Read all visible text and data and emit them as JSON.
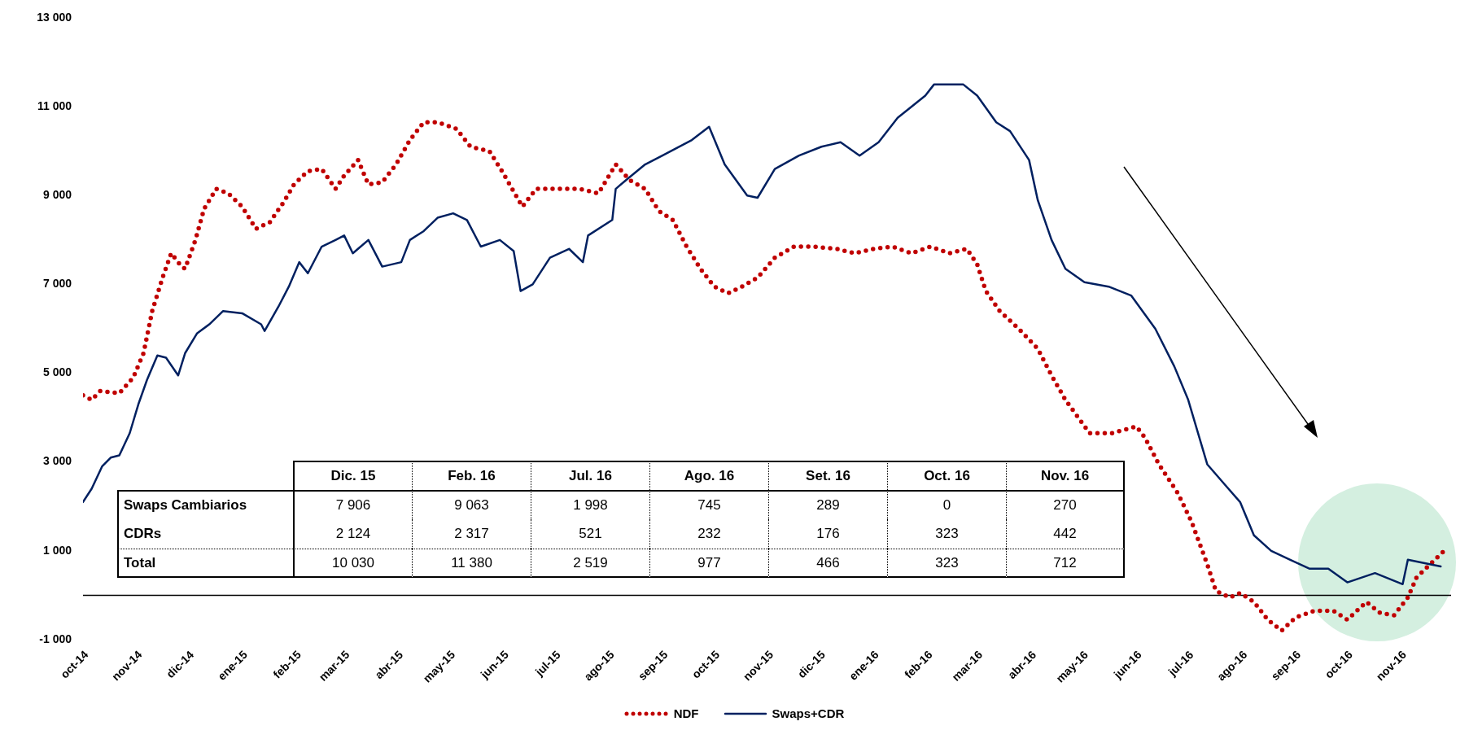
{
  "chart_data": {
    "type": "line",
    "legend": "bottom",
    "marker": "none",
    "xlim": [
      "2014-10-01",
      "2016-11-30"
    ],
    "xticks": [
      {
        "value": "2014-10-01",
        "label": "oct-14"
      },
      {
        "value": "2014-11-01",
        "label": "nov-14"
      },
      {
        "value": "2014-12-01",
        "label": "dic-14"
      },
      {
        "value": "2015-01-01",
        "label": "ene-15"
      },
      {
        "value": "2015-02-01",
        "label": "feb-15"
      },
      {
        "value": "2015-03-01",
        "label": "mar-15"
      },
      {
        "value": "2015-04-01",
        "label": "abr-15"
      },
      {
        "value": "2015-05-01",
        "label": "may-15"
      },
      {
        "value": "2015-06-01",
        "label": "jun-15"
      },
      {
        "value": "2015-07-01",
        "label": "jul-15"
      },
      {
        "value": "2015-08-01",
        "label": "ago-15"
      },
      {
        "value": "2015-09-01",
        "label": "sep-15"
      },
      {
        "value": "2015-10-01",
        "label": "oct-15"
      },
      {
        "value": "2015-11-01",
        "label": "nov-15"
      },
      {
        "value": "2015-12-01",
        "label": "dic-15"
      },
      {
        "value": "2016-01-01",
        "label": "ene-16"
      },
      {
        "value": "2016-02-01",
        "label": "feb-16"
      },
      {
        "value": "2016-03-01",
        "label": "mar-16"
      },
      {
        "value": "2016-04-01",
        "label": "abr-16"
      },
      {
        "value": "2016-05-01",
        "label": "may-16"
      },
      {
        "value": "2016-06-01",
        "label": "jun-16"
      },
      {
        "value": "2016-07-01",
        "label": "jul-16"
      },
      {
        "value": "2016-08-01",
        "label": "ago-16"
      },
      {
        "value": "2016-09-01",
        "label": "sep-16"
      },
      {
        "value": "2016-10-01",
        "label": "oct-16"
      },
      {
        "value": "2016-11-01",
        "label": "nov-16"
      }
    ],
    "ylim": [
      -1000,
      13000
    ],
    "yticks": [
      {
        "value": -1000,
        "label": "-1 000"
      },
      {
        "value": 1000,
        "label": "1 000"
      },
      {
        "value": 3000,
        "label": "3 000"
      },
      {
        "value": 5000,
        "label": "5 000"
      },
      {
        "value": 7000,
        "label": "7 000"
      },
      {
        "value": 9000,
        "label": "9 000"
      },
      {
        "value": 11000,
        "label": "11 000"
      },
      {
        "value": 13000,
        "label": "13 000"
      }
    ],
    "ref_lines": [
      {
        "axis": "y",
        "value": 0,
        "color": "#000000"
      }
    ],
    "annotations": [
      "Dic. 15",
      "Feb. 16",
      "Jul. 16",
      "Ago. 16",
      "Set. 16",
      "Oct. 16",
      "Nov. 16",
      "Swaps Cambiarios",
      "7 906",
      "9 063",
      "1 998",
      "745",
      "289",
      "0",
      "270",
      "CDRs",
      "2 124",
      "2 317",
      "521",
      "232",
      "176",
      "323",
      "442",
      "Total",
      "10 030",
      "11 380",
      "2 519",
      "977",
      "466",
      "323",
      "712"
    ],
    "series": [
      {
        "name": "NDF",
        "color": "#c00000",
        "line_style": "dotted",
        "x": [
          "2014-10-01",
          "2014-10-06",
          "2014-10-11",
          "2014-10-22",
          "2014-10-30",
          "2014-11-05",
          "2014-11-10",
          "2014-11-16",
          "2014-11-21",
          "2014-11-27",
          "2014-11-29",
          "2014-12-05",
          "2014-12-10",
          "2014-12-17",
          "2014-12-24",
          "2015-01-01",
          "2015-01-09",
          "2015-01-17",
          "2015-01-25",
          "2015-01-31",
          "2015-02-08",
          "2015-02-16",
          "2015-02-24",
          "2015-03-01",
          "2015-03-09",
          "2015-03-15",
          "2015-03-23",
          "2015-03-31",
          "2015-04-08",
          "2015-04-16",
          "2015-04-24",
          "2015-05-05",
          "2015-05-13",
          "2015-05-24",
          "2015-06-01",
          "2015-06-12",
          "2015-06-20",
          "2015-07-04",
          "2015-07-15",
          "2015-07-26",
          "2015-08-05",
          "2015-08-13",
          "2015-08-22",
          "2015-08-30",
          "2015-09-07",
          "2015-09-15",
          "2015-09-23",
          "2015-10-01",
          "2015-10-09",
          "2015-10-17",
          "2015-10-26",
          "2015-11-05",
          "2015-11-16",
          "2015-11-27",
          "2015-12-11",
          "2015-12-21",
          "2016-01-01",
          "2016-01-12",
          "2016-01-23",
          "2016-02-03",
          "2016-02-14",
          "2016-02-24",
          "2016-03-01",
          "2016-03-06",
          "2016-03-14",
          "2016-03-25",
          "2016-04-05",
          "2016-04-13",
          "2016-04-21",
          "2016-05-05",
          "2016-05-18",
          "2016-06-01",
          "2016-06-06",
          "2016-06-14",
          "2016-06-25",
          "2016-07-03",
          "2016-07-12",
          "2016-07-17",
          "2016-07-25",
          "2016-07-31",
          "2016-08-08",
          "2016-08-16",
          "2016-08-24",
          "2016-09-01",
          "2016-09-12",
          "2016-09-23",
          "2016-10-01",
          "2016-10-12",
          "2016-10-20",
          "2016-10-28",
          "2016-11-05",
          "2016-11-10",
          "2016-11-18",
          "2016-11-26"
        ],
        "values": [
          4500,
          4400,
          4600,
          4550,
          4900,
          5450,
          6400,
          7150,
          7700,
          7400,
          7350,
          8000,
          8700,
          9150,
          9050,
          8750,
          8250,
          8400,
          8850,
          9250,
          9550,
          9600,
          9150,
          9450,
          9800,
          9250,
          9300,
          9700,
          10250,
          10650,
          10650,
          10500,
          10100,
          10000,
          9500,
          8750,
          9150,
          9150,
          9150,
          9050,
          9700,
          9350,
          9150,
          8650,
          8450,
          7850,
          7350,
          6950,
          6800,
          6950,
          7150,
          7600,
          7850,
          7850,
          7800,
          7700,
          7800,
          7850,
          7700,
          7850,
          7700,
          7800,
          7450,
          6850,
          6400,
          6000,
          5550,
          4950,
          4400,
          3650,
          3650,
          3800,
          3550,
          2950,
          2300,
          1650,
          700,
          100,
          -50,
          50,
          -150,
          -550,
          -800,
          -500,
          -350,
          -350,
          -550,
          -150,
          -400,
          -450,
          -50,
          400,
          700,
          1000
        ]
      },
      {
        "name": "Swaps+CDR",
        "color": "#002060",
        "line_style": "solid",
        "x": [
          "2014-10-01",
          "2014-10-06",
          "2014-10-12",
          "2014-10-17",
          "2014-10-22",
          "2014-10-28",
          "2014-11-02",
          "2014-11-07",
          "2014-11-13",
          "2014-11-18",
          "2014-11-25",
          "2014-11-29",
          "2014-12-06",
          "2014-12-13",
          "2014-12-21",
          "2015-01-01",
          "2015-01-12",
          "2015-01-14",
          "2015-01-22",
          "2015-01-28",
          "2015-02-03",
          "2015-02-08",
          "2015-02-16",
          "2015-02-24",
          "2015-03-01",
          "2015-03-06",
          "2015-03-09",
          "2015-03-15",
          "2015-03-23",
          "2015-04-03",
          "2015-04-08",
          "2015-04-16",
          "2015-04-24",
          "2015-05-03",
          "2015-05-11",
          "2015-05-19",
          "2015-05-30",
          "2015-06-07",
          "2015-06-11",
          "2015-06-18",
          "2015-06-28",
          "2015-07-09",
          "2015-07-17",
          "2015-07-20",
          "2015-08-03",
          "2015-08-05",
          "2015-08-11",
          "2015-08-22",
          "2015-09-01",
          "2015-09-18",
          "2015-09-28",
          "2015-10-07",
          "2015-10-20",
          "2015-10-26",
          "2015-11-05",
          "2015-11-19",
          "2015-12-02",
          "2015-12-13",
          "2015-12-24",
          "2016-01-04",
          "2016-01-15",
          "2016-01-31",
          "2016-02-05",
          "2016-02-22",
          "2016-03-01",
          "2016-03-12",
          "2016-03-20",
          "2016-03-31",
          "2016-04-05",
          "2016-04-13",
          "2016-04-21",
          "2016-05-02",
          "2016-05-16",
          "2016-05-29",
          "2016-06-12",
          "2016-06-23",
          "2016-07-01",
          "2016-07-12",
          "2016-07-22",
          "2016-07-31",
          "2016-08-08",
          "2016-08-18",
          "2016-08-29",
          "2016-09-09",
          "2016-09-20",
          "2016-10-01",
          "2016-10-17",
          "2016-11-02",
          "2016-11-05",
          "2016-11-24"
        ],
        "values": [
          2100,
          2400,
          2900,
          3100,
          3150,
          3650,
          4300,
          4850,
          5400,
          5350,
          4950,
          5450,
          5900,
          6100,
          6400,
          6350,
          6100,
          5950,
          6500,
          6950,
          7500,
          7250,
          7850,
          8000,
          8100,
          7700,
          7800,
          8000,
          7400,
          7500,
          8000,
          8200,
          8500,
          8600,
          8450,
          7850,
          8000,
          7750,
          6850,
          7000,
          7600,
          7800,
          7500,
          8100,
          8450,
          9150,
          9350,
          9700,
          9900,
          10250,
          10550,
          9700,
          9000,
          8950,
          9600,
          9900,
          10100,
          10200,
          9900,
          10200,
          10750,
          11250,
          11500,
          11500,
          11250,
          10650,
          10450,
          9800,
          8900,
          8000,
          7350,
          7050,
          6950,
          6750,
          6000,
          5150,
          4400,
          2950,
          2500,
          2100,
          1350,
          1000,
          800,
          600,
          600,
          290,
          500,
          250,
          800,
          650
        ]
      }
    ]
  }
}
